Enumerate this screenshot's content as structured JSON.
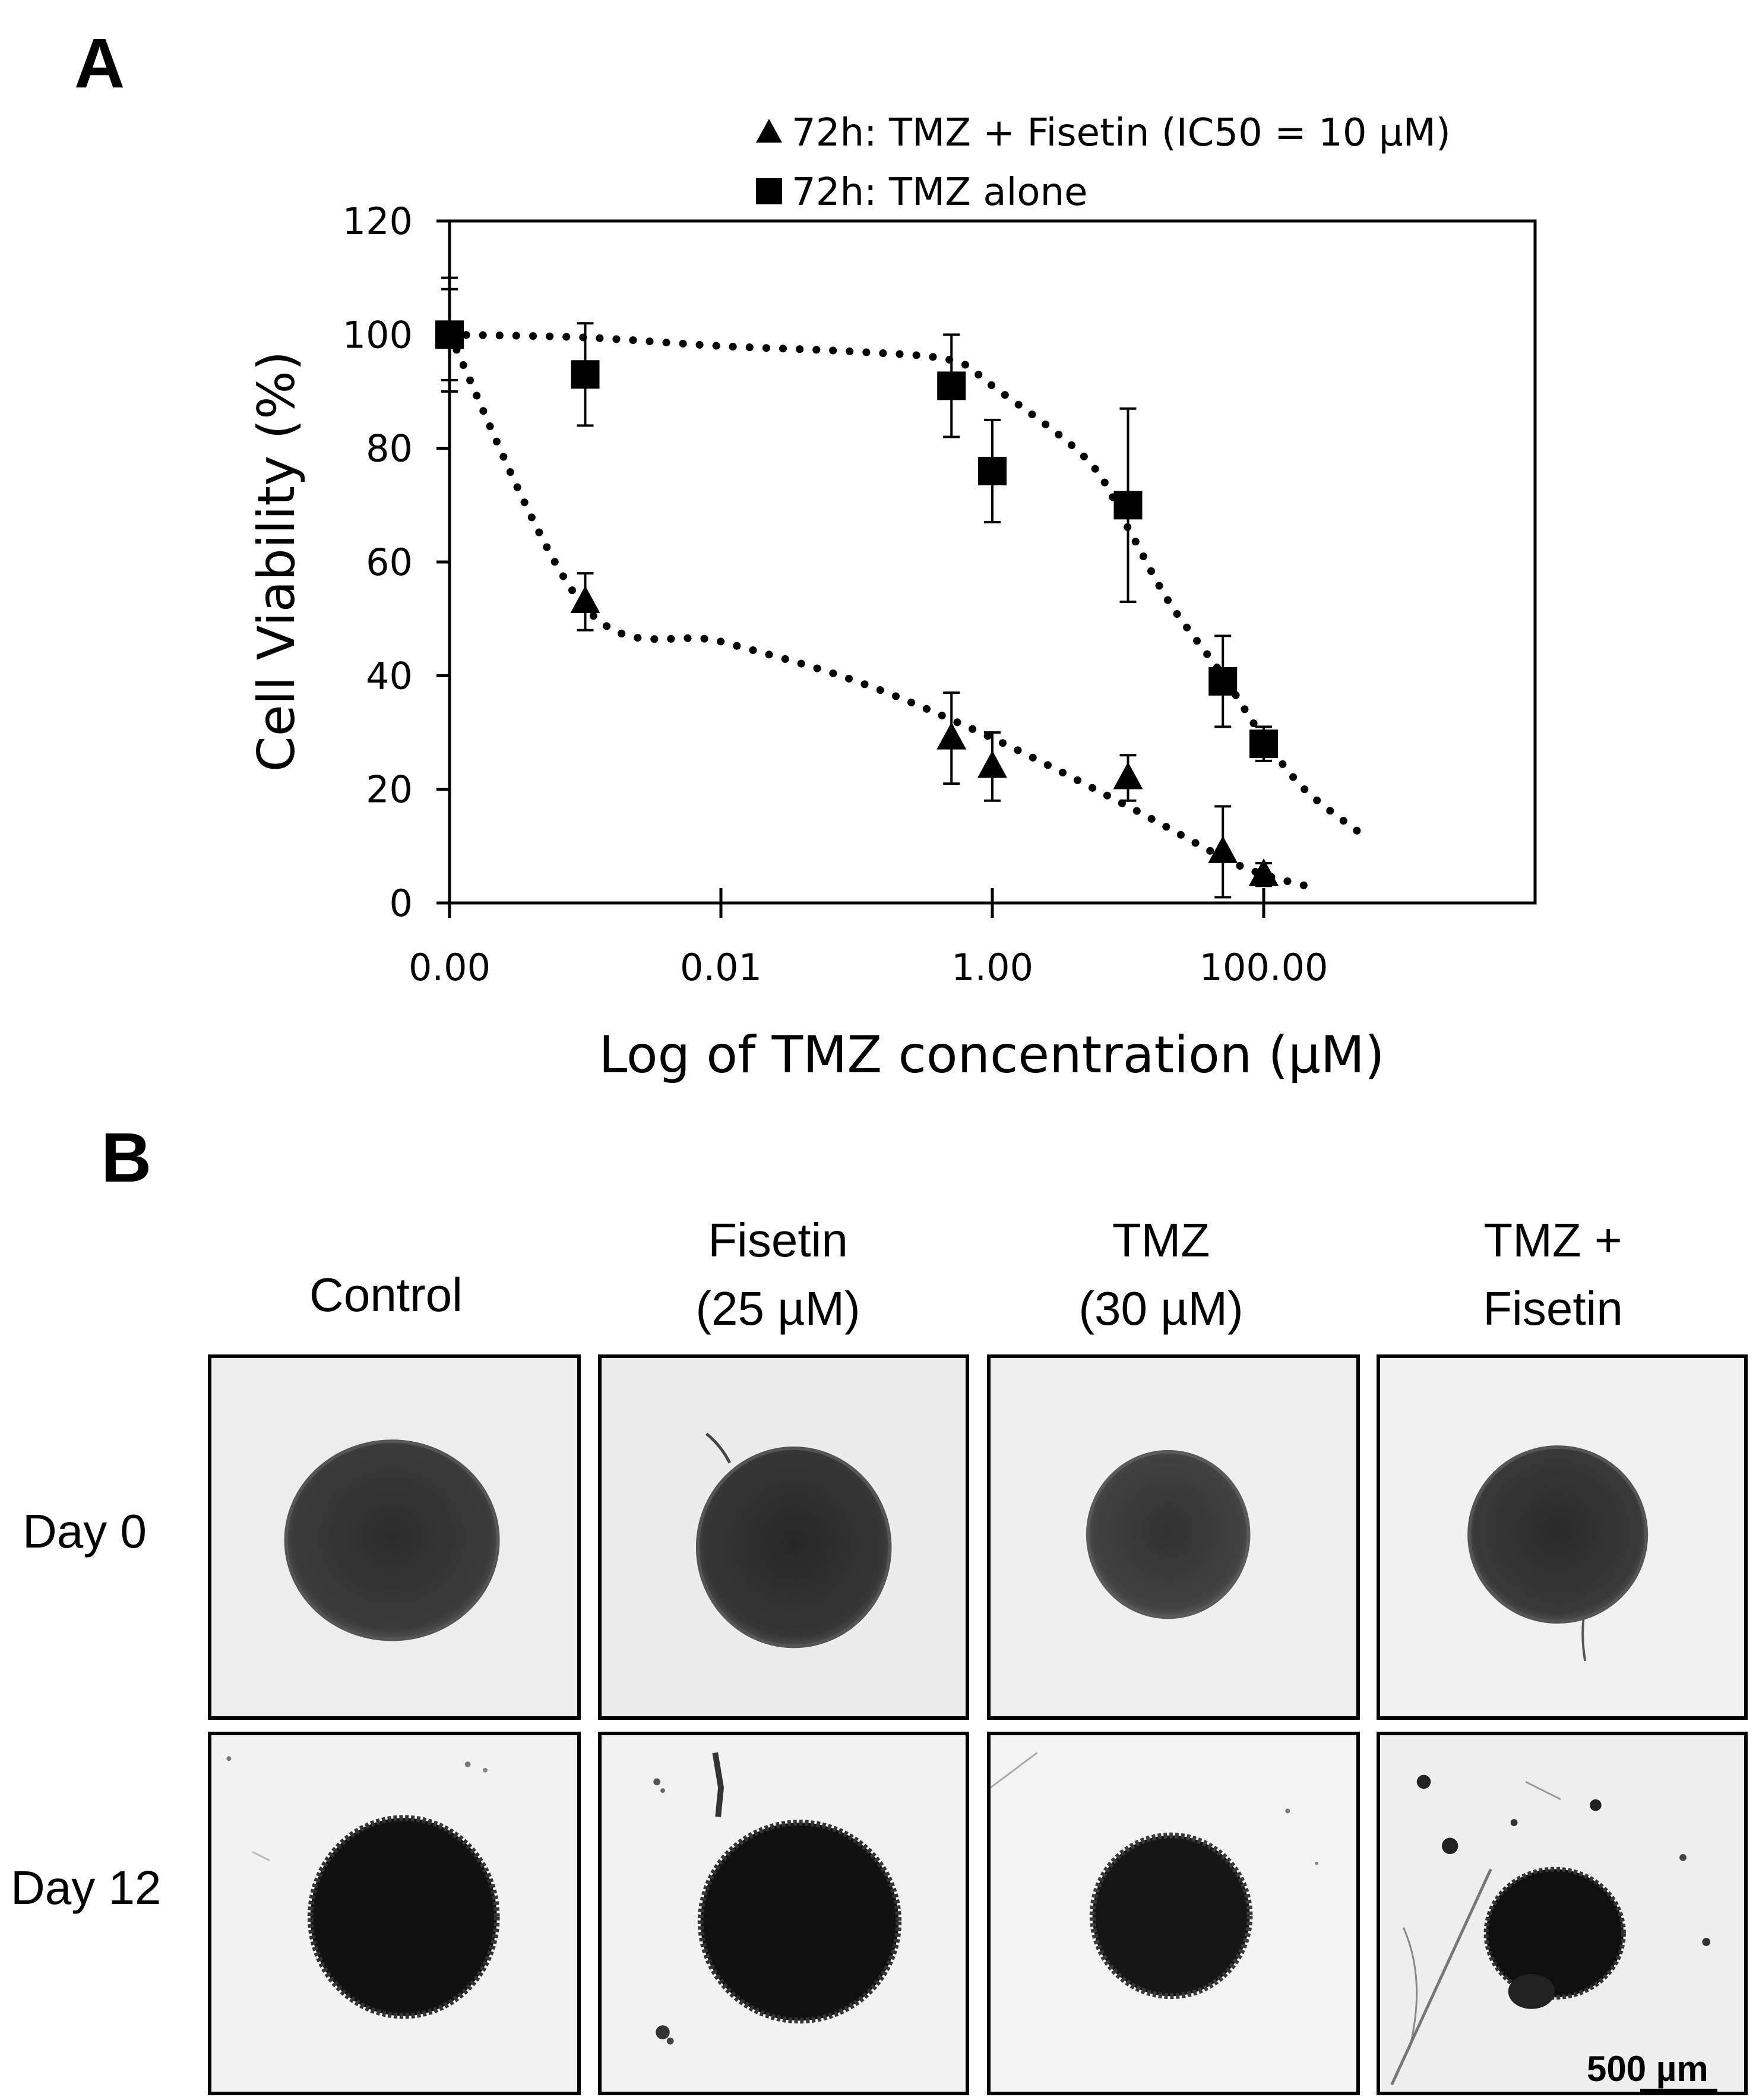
{
  "panel_a": {
    "label": "A"
  },
  "panel_b": {
    "label": "B"
  },
  "chart_data": {
    "type": "scatter",
    "xlabel": "Log of TMZ concentration (µM)",
    "ylabel": "Cell Viability (%)",
    "x_scale": "log",
    "x_ticks": [
      0.0001,
      0.01,
      1,
      100
    ],
    "x_tick_labels": [
      "0.00",
      "0.01",
      "1.00",
      "100.00"
    ],
    "xlim": [
      0.0001,
      10000
    ],
    "ylim": [
      0,
      120
    ],
    "y_ticks": [
      0,
      20,
      40,
      60,
      80,
      100,
      120
    ],
    "grid": false,
    "legend_position": "top",
    "series": [
      {
        "name": "72h: TMZ + Fisetin (IC50 = 10 µM)",
        "marker": "triangle",
        "color": "#000000",
        "points": [
          {
            "x": 0.0001,
            "y": 100,
            "err": 10
          },
          {
            "x": 0.001,
            "y": 53,
            "err": 5
          },
          {
            "x": 0.5,
            "y": 29,
            "err": 8
          },
          {
            "x": 1,
            "y": 24,
            "err": 6
          },
          {
            "x": 10,
            "y": 22,
            "err": 4
          },
          {
            "x": 50,
            "y": 9,
            "err": 8
          },
          {
            "x": 100,
            "y": 5,
            "err": 2
          }
        ],
        "trendline": [
          [
            0.0001,
            100
          ],
          [
            0.001,
            52
          ],
          [
            0.01,
            46
          ],
          [
            0.1,
            39
          ],
          [
            1,
            29
          ],
          [
            10,
            17
          ],
          [
            50,
            8
          ],
          [
            100,
            5
          ],
          [
            250,
            2.5
          ]
        ]
      },
      {
        "name": "72h: TMZ alone",
        "marker": "square",
        "color": "#000000",
        "points": [
          {
            "x": 0.0001,
            "y": 100,
            "err": 8
          },
          {
            "x": 0.001,
            "y": 93,
            "err": 9
          },
          {
            "x": 0.5,
            "y": 91,
            "err": 9
          },
          {
            "x": 1,
            "y": 76,
            "err": 9
          },
          {
            "x": 10,
            "y": 70,
            "err": 17
          },
          {
            "x": 50,
            "y": 39,
            "err": 8
          },
          {
            "x": 100,
            "y": 28,
            "err": 3
          }
        ],
        "trendline": [
          [
            0.0001,
            100
          ],
          [
            0.001,
            99.5
          ],
          [
            0.01,
            98
          ],
          [
            0.1,
            97
          ],
          [
            0.5,
            95.5
          ],
          [
            1,
            91
          ],
          [
            5,
            78
          ],
          [
            10,
            66
          ],
          [
            20,
            53
          ],
          [
            50,
            40
          ],
          [
            100,
            29
          ],
          [
            200,
            20
          ],
          [
            500,
            12.5
          ]
        ]
      }
    ]
  },
  "images": {
    "columns": [
      {
        "label": "Control"
      },
      {
        "label": "Fisetin\n(25 µM)"
      },
      {
        "label": "TMZ\n(30 µM)"
      },
      {
        "label": "TMZ +\nFisetin"
      }
    ],
    "rows": [
      {
        "label": "Day 0"
      },
      {
        "label": "Day 12"
      }
    ],
    "scale_bar": "500 µm"
  }
}
